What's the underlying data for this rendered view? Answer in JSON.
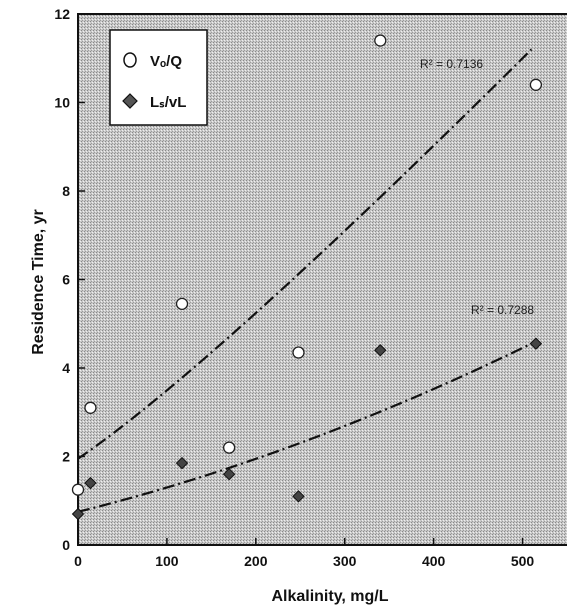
{
  "chart_data": {
    "type": "scatter",
    "xlabel": "Alkalinity, mg/L",
    "ylabel": "Residence Time, yr",
    "xlim": [
      0,
      550
    ],
    "ylim": [
      0,
      12
    ],
    "x_ticks": [
      "0",
      "100",
      "200",
      "300",
      "400",
      "500"
    ],
    "y_ticks": [
      "0",
      "2",
      "4",
      "6",
      "8",
      "10",
      "12"
    ],
    "grid": false,
    "legend_position": "top-left",
    "background": "stippled gray",
    "series": [
      {
        "name": "Vₒ/Q",
        "marker": "open-circle",
        "points": [
          {
            "x": 0,
            "y": 1.25
          },
          {
            "x": 14,
            "y": 3.1
          },
          {
            "x": 117,
            "y": 5.45
          },
          {
            "x": 170,
            "y": 2.2
          },
          {
            "x": 248,
            "y": 4.35
          },
          {
            "x": 340,
            "y": 11.4
          },
          {
            "x": 515,
            "y": 10.4
          }
        ],
        "trend": {
          "label": "R² = 0.7136",
          "style": "dash-dot",
          "from": {
            "x": 0,
            "y": 1.95
          },
          "to": {
            "x": 510,
            "y": 11.2
          }
        }
      },
      {
        "name": "Lₛ/vL",
        "marker": "filled-diamond",
        "points": [
          {
            "x": 0,
            "y": 0.7
          },
          {
            "x": 14,
            "y": 1.4
          },
          {
            "x": 117,
            "y": 1.85
          },
          {
            "x": 170,
            "y": 1.6
          },
          {
            "x": 248,
            "y": 1.1
          },
          {
            "x": 340,
            "y": 4.4
          },
          {
            "x": 515,
            "y": 4.55
          }
        ],
        "trend": {
          "label": "R² = 0.7288",
          "style": "dash-dot",
          "from": {
            "x": 0,
            "y": 0.75
          },
          "to": {
            "x": 510,
            "y": 4.55
          }
        }
      }
    ]
  }
}
